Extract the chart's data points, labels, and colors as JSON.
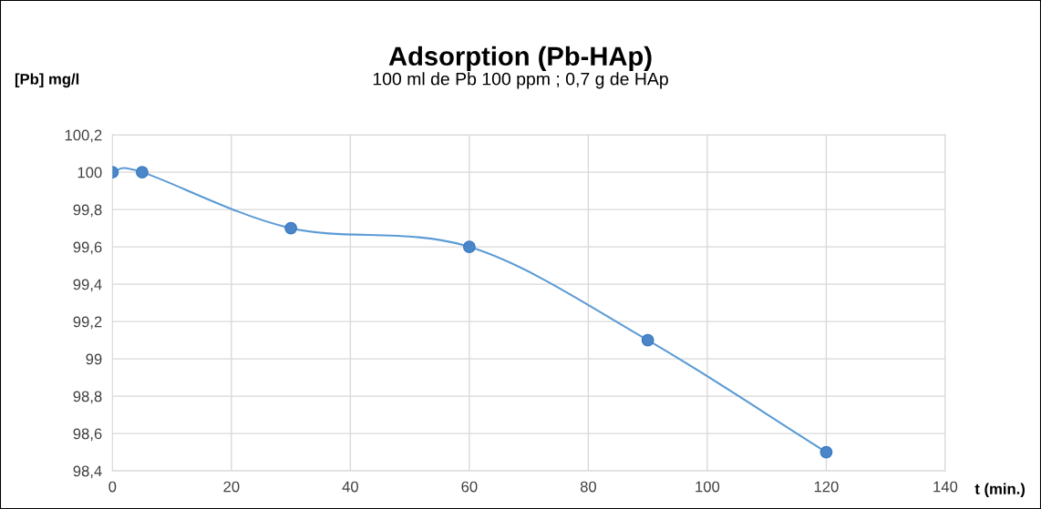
{
  "chart_data": {
    "type": "line",
    "title": "Adsorption (Pb-HAp)",
    "subtitle": "100 ml de Pb 100 ppm ; 0,7 g de HAp",
    "xlabel": "t (min.)",
    "ylabel": "[Pb] mg/l",
    "x": [
      0,
      5,
      30,
      60,
      90,
      120
    ],
    "series": [
      {
        "color": "#5b9bd5",
        "values": [
          100,
          100,
          99.7,
          99.6,
          99.1,
          98.5
        ]
      }
    ],
    "xlim": [
      0,
      140
    ],
    "xticks": [
      0,
      20,
      40,
      60,
      80,
      100,
      120,
      140
    ],
    "ylim": [
      98.4,
      100.2
    ],
    "yticks": [
      {
        "value": 98.4,
        "label": "98,4"
      },
      {
        "value": 98.6,
        "label": "98,6"
      },
      {
        "value": 98.8,
        "label": "98,8"
      },
      {
        "value": 99,
        "label": "99"
      },
      {
        "value": 99.2,
        "label": "99,2"
      },
      {
        "value": 99.4,
        "label": "99,4"
      },
      {
        "value": 99.6,
        "label": "99,6"
      },
      {
        "value": 99.8,
        "label": "99,8"
      },
      {
        "value": 100,
        "label": "100"
      },
      {
        "value": 100.2,
        "label": "100,2"
      }
    ],
    "grid": true,
    "marker": "circle",
    "line_style": "solid"
  }
}
